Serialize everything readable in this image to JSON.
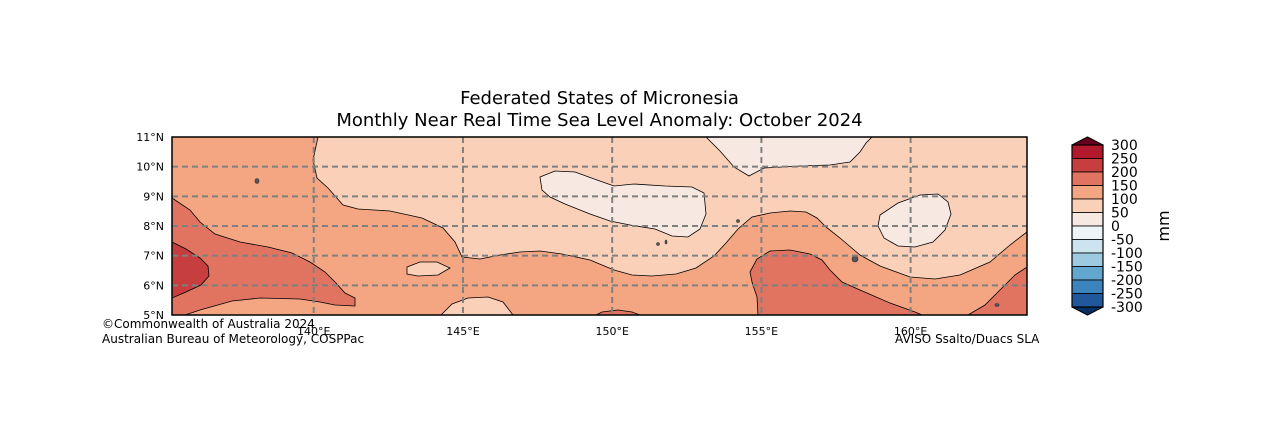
{
  "title": {
    "line1": "Federated States of Micronesia",
    "line2": "Monthly Near Real Time Sea Level Anomaly: October 2024"
  },
  "map": {
    "lon_range_degE": [
      135.25,
      163.9
    ],
    "lat_range_degN": [
      5,
      11
    ],
    "graticule_longitudes": [
      140,
      145,
      150,
      155,
      160
    ],
    "graticule_latitudes": [
      6,
      7,
      8,
      9,
      10
    ],
    "x_tick_labels": [
      "140°E",
      "145°E",
      "150°E",
      "155°E",
      "160°E"
    ],
    "y_tick_labels": [
      "5°N",
      "6°N",
      "7°N",
      "8°N",
      "9°N",
      "10°N",
      "11°N"
    ],
    "gridline_style": "dashed",
    "gridline_color": "#808080"
  },
  "colorbar": {
    "unit": "mm",
    "tick_labels": [
      "300",
      "250",
      "200",
      "150",
      "100",
      "50",
      "0",
      "-50",
      "-100",
      "-150",
      "-200",
      "-250",
      "-300"
    ],
    "color_bins": [
      "#b2182b",
      "#c73e3e",
      "#e07461",
      "#f4a582",
      "#fbd0b9",
      "#f7e9e2",
      "#eef3f7",
      "#cde3ef",
      "#9ccae1",
      "#63a7cf",
      "#3a83bc",
      "#21589c"
    ],
    "over_color": "#67001f",
    "under_color": "#053061"
  },
  "fill_colors": {
    "level_150_200": "#f4a582",
    "level_100_150": "#fbd0b9",
    "level_50_100": "#f7e9e2",
    "level_200_250": "#e07461",
    "level_250_300": "#c73e3e",
    "land": "#555555"
  },
  "credits": {
    "copyright": "©Commonwealth of Australia 2024",
    "agency": "Australian Bureau of Meteorology, COSPPac",
    "source": "AVISO Ssalto/Duacs SLA"
  }
}
